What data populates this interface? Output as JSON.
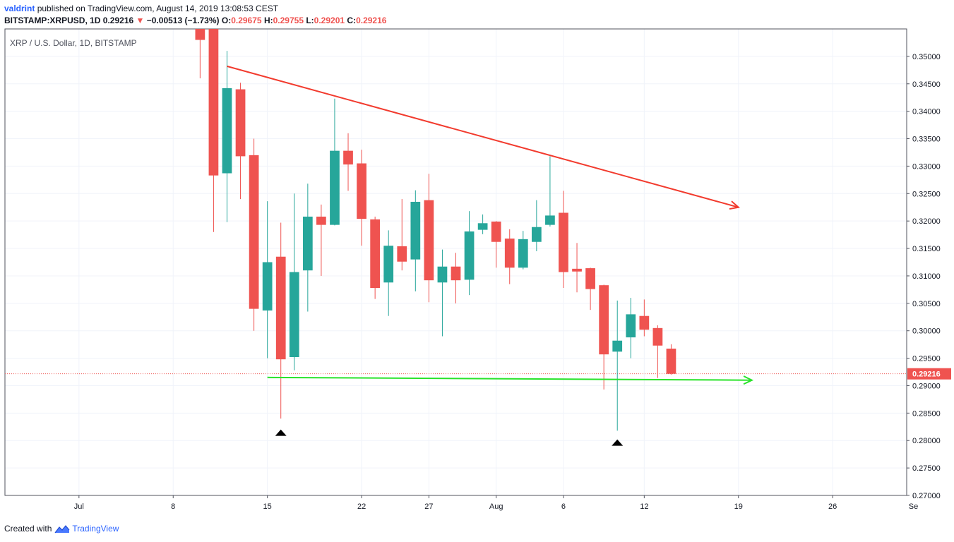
{
  "header": {
    "user": "valdrint",
    "published": "published on TradingView.com, August 14, 2019 13:08:53 CEST",
    "symbol": "BITSTAMP:XRPUSD, 1D",
    "last": "0.29216",
    "arrow": "▼",
    "change": "−0.00513 (−1.73%)",
    "o_label": "O:",
    "o": "0.29675",
    "h_label": "H:",
    "h": "0.29755",
    "l_label": "L:",
    "l": "0.29201",
    "c_label": "C:",
    "c": "0.29216"
  },
  "footer": {
    "created": "Created with",
    "brand": "TradingView"
  },
  "chart_data": {
    "type": "candlestick",
    "title": "XRP / U.S. Dollar, 1D, BITSTAMP",
    "ylim": [
      0.27,
      0.355
    ],
    "xlim_days": [
      -5.5,
      61.5
    ],
    "y_ticks": [
      "0.27000",
      "0.27500",
      "0.28000",
      "0.28500",
      "0.29000",
      "0.29500",
      "0.30000",
      "0.30500",
      "0.31000",
      "0.31500",
      "0.32000",
      "0.32500",
      "0.33000",
      "0.33500",
      "0.34000",
      "0.34500",
      "0.35000"
    ],
    "x_ticks": [
      {
        "day": 0,
        "label": "Jul"
      },
      {
        "day": 7,
        "label": "8"
      },
      {
        "day": 14,
        "label": "15"
      },
      {
        "day": 21,
        "label": "22"
      },
      {
        "day": 26,
        "label": "27"
      },
      {
        "day": 31,
        "label": "Aug"
      },
      {
        "day": 36,
        "label": "6"
      },
      {
        "day": 42,
        "label": "12"
      },
      {
        "day": 49,
        "label": "19"
      },
      {
        "day": 56,
        "label": "26"
      },
      {
        "day": 62,
        "label": "Se"
      }
    ],
    "last_price": "0.29216",
    "candles": [
      {
        "d": 9,
        "o": 0.362,
        "h": 0.364,
        "l": 0.346,
        "c": 0.353
      },
      {
        "d": 10,
        "o": 0.356,
        "h": 0.358,
        "l": 0.318,
        "c": 0.3283
      },
      {
        "d": 11,
        "o": 0.3287,
        "h": 0.351,
        "l": 0.3198,
        "c": 0.3442
      },
      {
        "d": 12,
        "o": 0.344,
        "h": 0.3452,
        "l": 0.324,
        "c": 0.3318
      },
      {
        "d": 13,
        "o": 0.332,
        "h": 0.335,
        "l": 0.3,
        "c": 0.304
      },
      {
        "d": 14,
        "o": 0.3037,
        "h": 0.3236,
        "l": 0.295,
        "c": 0.3125
      },
      {
        "d": 15,
        "o": 0.3135,
        "h": 0.3197,
        "l": 0.284,
        "c": 0.2948
      },
      {
        "d": 16,
        "o": 0.2952,
        "h": 0.325,
        "l": 0.2928,
        "c": 0.3107
      },
      {
        "d": 17,
        "o": 0.311,
        "h": 0.3268,
        "l": 0.3035,
        "c": 0.3208
      },
      {
        "d": 18,
        "o": 0.3208,
        "h": 0.323,
        "l": 0.31,
        "c": 0.3193
      },
      {
        "d": 19,
        "o": 0.3193,
        "h": 0.3423,
        "l": 0.3192,
        "c": 0.3328
      },
      {
        "d": 20,
        "o": 0.3328,
        "h": 0.336,
        "l": 0.3255,
        "c": 0.3303
      },
      {
        "d": 21,
        "o": 0.3305,
        "h": 0.333,
        "l": 0.3155,
        "c": 0.3204
      },
      {
        "d": 22,
        "o": 0.3203,
        "h": 0.3208,
        "l": 0.3058,
        "c": 0.3078
      },
      {
        "d": 23,
        "o": 0.3088,
        "h": 0.3183,
        "l": 0.3027,
        "c": 0.3155
      },
      {
        "d": 24,
        "o": 0.3154,
        "h": 0.324,
        "l": 0.311,
        "c": 0.3126
      },
      {
        "d": 25,
        "o": 0.313,
        "h": 0.3256,
        "l": 0.3072,
        "c": 0.3235
      },
      {
        "d": 26,
        "o": 0.3238,
        "h": 0.3286,
        "l": 0.3052,
        "c": 0.3092
      },
      {
        "d": 27,
        "o": 0.3088,
        "h": 0.3148,
        "l": 0.299,
        "c": 0.3117
      },
      {
        "d": 28,
        "o": 0.3117,
        "h": 0.3142,
        "l": 0.305,
        "c": 0.3092
      },
      {
        "d": 29,
        "o": 0.3093,
        "h": 0.3218,
        "l": 0.3065,
        "c": 0.3181
      },
      {
        "d": 30,
        "o": 0.3184,
        "h": 0.3212,
        "l": 0.3176,
        "c": 0.3196
      },
      {
        "d": 31,
        "o": 0.3199,
        "h": 0.32,
        "l": 0.3115,
        "c": 0.3162
      },
      {
        "d": 32,
        "o": 0.3168,
        "h": 0.3185,
        "l": 0.3085,
        "c": 0.3115
      },
      {
        "d": 33,
        "o": 0.3115,
        "h": 0.3182,
        "l": 0.3112,
        "c": 0.3167
      },
      {
        "d": 34,
        "o": 0.3162,
        "h": 0.3238,
        "l": 0.3145,
        "c": 0.3189
      },
      {
        "d": 35,
        "o": 0.3193,
        "h": 0.3318,
        "l": 0.319,
        "c": 0.321
      },
      {
        "d": 36,
        "o": 0.3215,
        "h": 0.3255,
        "l": 0.3078,
        "c": 0.3107
      },
      {
        "d": 37,
        "o": 0.3113,
        "h": 0.316,
        "l": 0.307,
        "c": 0.3108
      },
      {
        "d": 38,
        "o": 0.3114,
        "h": 0.3115,
        "l": 0.3038,
        "c": 0.3076
      },
      {
        "d": 39,
        "o": 0.3083,
        "h": 0.3084,
        "l": 0.2893,
        "c": 0.2957
      },
      {
        "d": 40,
        "o": 0.2962,
        "h": 0.3055,
        "l": 0.2818,
        "c": 0.2982
      },
      {
        "d": 41,
        "o": 0.2988,
        "h": 0.306,
        "l": 0.295,
        "c": 0.303
      },
      {
        "d": 42,
        "o": 0.3027,
        "h": 0.3057,
        "l": 0.299,
        "c": 0.3002
      },
      {
        "d": 43,
        "o": 0.3005,
        "h": 0.301,
        "l": 0.2914,
        "c": 0.2973
      },
      {
        "d": 44,
        "o": 0.29675,
        "h": 0.29755,
        "l": 0.29201,
        "c": 0.29216
      }
    ],
    "lines": [
      {
        "name": "resistance",
        "color": "#f23b2e",
        "from": {
          "d": 11,
          "p": 0.3482
        },
        "to": {
          "d": 49,
          "p": 0.3225
        },
        "arrow": true
      },
      {
        "name": "support",
        "color": "#29e32a",
        "from": {
          "d": 14,
          "p": 0.2915
        },
        "to": {
          "d": 50,
          "p": 0.291
        },
        "arrow": true
      }
    ],
    "markers": [
      {
        "d": 15,
        "p": 0.2815,
        "shape": "triangle-up",
        "color": "#000000"
      },
      {
        "d": 40,
        "p": 0.2797,
        "shape": "triangle-up",
        "color": "#000000"
      }
    ],
    "colors": {
      "up": "#26a69a",
      "down": "#ef5350",
      "grid": "#f0f3fa",
      "axis": "#50535e",
      "price_line": "#ef5350"
    }
  }
}
